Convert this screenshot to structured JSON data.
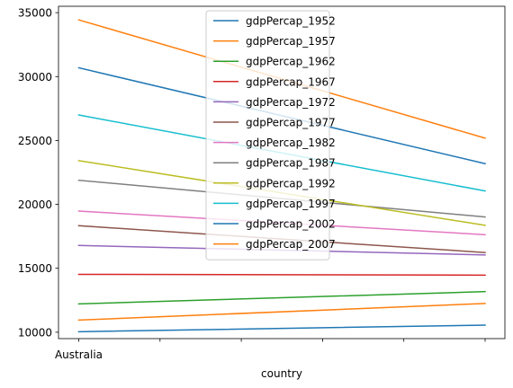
{
  "chart_data": {
    "type": "line",
    "xlabel": "country",
    "ylabel": "",
    "x_tick_labels": [
      "Australia",
      "",
      "",
      "",
      "",
      ""
    ],
    "ylim": [
      9500,
      35500
    ],
    "yticks": [
      10000,
      15000,
      20000,
      25000,
      30000,
      35000
    ],
    "legend_position": "upper center",
    "grid": false,
    "series": [
      {
        "name": "gdpPercap_1952",
        "color": "#1f77b4",
        "values": [
          10040,
          10556
        ]
      },
      {
        "name": "gdpPercap_1957",
        "color": "#ff7f0e",
        "values": [
          10950,
          12247
        ]
      },
      {
        "name": "gdpPercap_1962",
        "color": "#2ca02c",
        "values": [
          12217,
          13176
        ]
      },
      {
        "name": "gdpPercap_1967",
        "color": "#d62728",
        "values": [
          14526,
          14464
        ]
      },
      {
        "name": "gdpPercap_1972",
        "color": "#9467bd",
        "values": [
          16789,
          16046
        ]
      },
      {
        "name": "gdpPercap_1977",
        "color": "#8c564b",
        "values": [
          18334,
          16234
        ]
      },
      {
        "name": "gdpPercap_1982",
        "color": "#e377c2",
        "values": [
          19477,
          17632
        ]
      },
      {
        "name": "gdpPercap_1987",
        "color": "#7f7f7f",
        "values": [
          21889,
          19014
        ]
      },
      {
        "name": "gdpPercap_1992",
        "color": "#bcbd22",
        "values": [
          23425,
          18363
        ]
      },
      {
        "name": "gdpPercap_1997",
        "color": "#17becf",
        "values": [
          26998,
          21050
        ]
      },
      {
        "name": "gdpPercap_2002",
        "color": "#1f77b4",
        "values": [
          30688,
          23190
        ]
      },
      {
        "name": "gdpPercap_2007",
        "color": "#ff7f0e",
        "values": [
          34435,
          25185
        ]
      }
    ]
  }
}
